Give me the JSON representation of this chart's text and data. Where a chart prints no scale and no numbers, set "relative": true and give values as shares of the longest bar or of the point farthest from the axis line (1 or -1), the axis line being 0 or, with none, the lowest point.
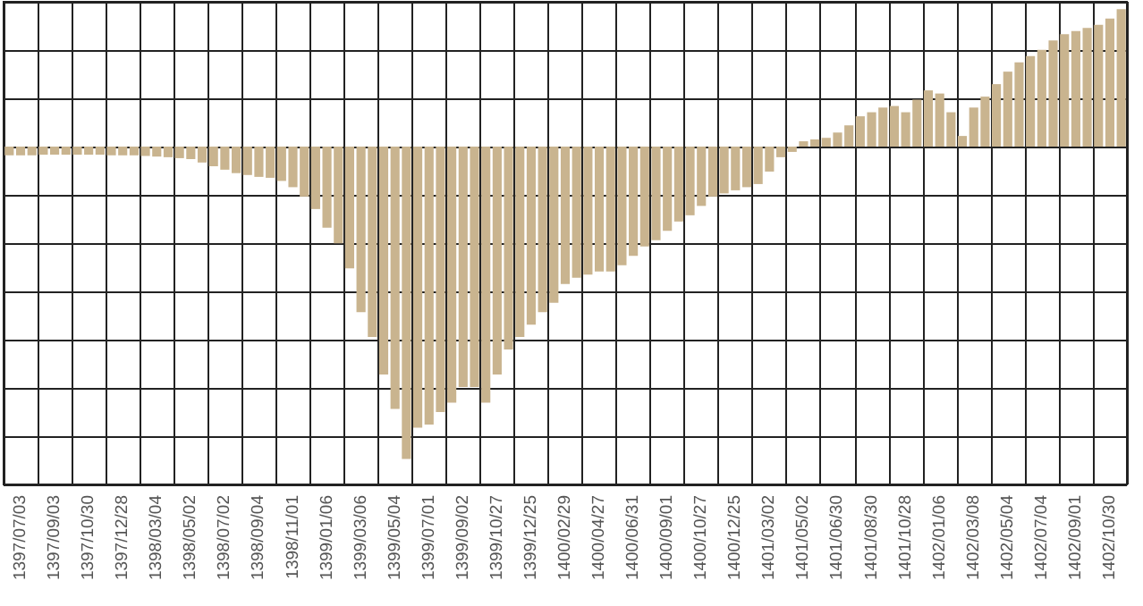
{
  "chart_data": {
    "type": "bar",
    "relative": true,
    "grid": true,
    "color": "#c9b48f",
    "categories": [
      null,
      "1397/07/03",
      null,
      null,
      "1397/09/03",
      null,
      null,
      "1397/10/30",
      null,
      null,
      "1397/12/28",
      null,
      null,
      "1398/03/04",
      null,
      null,
      "1398/05/02",
      null,
      null,
      "1398/07/02",
      null,
      null,
      "1398/09/04",
      null,
      null,
      "1398/11/01",
      null,
      null,
      "1399/01/06",
      null,
      null,
      "1399/03/06",
      null,
      null,
      "1399/05/04",
      null,
      null,
      "1399/07/01",
      null,
      null,
      "1399/09/02",
      null,
      null,
      "1399/10/27",
      null,
      null,
      "1399/12/25",
      null,
      null,
      "1400/02/29",
      null,
      null,
      "1400/04/27",
      null,
      null,
      "1400/06/31",
      null,
      null,
      "1400/09/01",
      null,
      null,
      "1400/10/27",
      null,
      null,
      "1400/12/25",
      null,
      null,
      "1401/03/02",
      null,
      null,
      "1401/05/02",
      null,
      null,
      "1401/06/30",
      null,
      null,
      "1401/08/30",
      null,
      null,
      "1401/10/28",
      null,
      null,
      "1402/01/06",
      null,
      null,
      "1402/03/08",
      null,
      null,
      "1402/05/04",
      null,
      null,
      "1402/07/04",
      null,
      null,
      "1402/09/01",
      null,
      null,
      "1402/10/30",
      null
    ],
    "values": [
      -0.028,
      -0.028,
      -0.028,
      -0.026,
      -0.026,
      -0.026,
      -0.026,
      -0.026,
      -0.026,
      -0.028,
      -0.028,
      -0.028,
      -0.03,
      -0.032,
      -0.034,
      -0.037,
      -0.04,
      -0.051,
      -0.063,
      -0.074,
      -0.085,
      -0.091,
      -0.097,
      -0.1,
      -0.11,
      -0.13,
      -0.16,
      -0.2,
      -0.26,
      -0.31,
      -0.39,
      -0.53,
      -0.61,
      -0.73,
      -0.84,
      -1,
      -0.9,
      -0.89,
      -0.85,
      -0.82,
      -0.77,
      -0.77,
      -0.82,
      -0.73,
      -0.65,
      -0.61,
      -0.57,
      -0.53,
      -0.5,
      -0.44,
      -0.42,
      -0.41,
      -0.4,
      -0.4,
      -0.38,
      -0.35,
      -0.32,
      -0.3,
      -0.27,
      -0.24,
      -0.22,
      -0.19,
      -0.16,
      -0.15,
      -0.14,
      -0.13,
      -0.12,
      -0.08,
      -0.034,
      -0.017,
      0.017,
      0.023,
      0.028,
      0.045,
      0.068,
      0.097,
      0.11,
      0.125,
      0.13,
      0.11,
      0.15,
      0.18,
      0.17,
      0.11,
      0.034,
      0.125,
      0.16,
      0.2,
      0.24,
      0.27,
      0.29,
      0.31,
      0.34,
      0.36,
      0.37,
      0.38,
      0.39,
      0.41,
      0.44
    ]
  }
}
